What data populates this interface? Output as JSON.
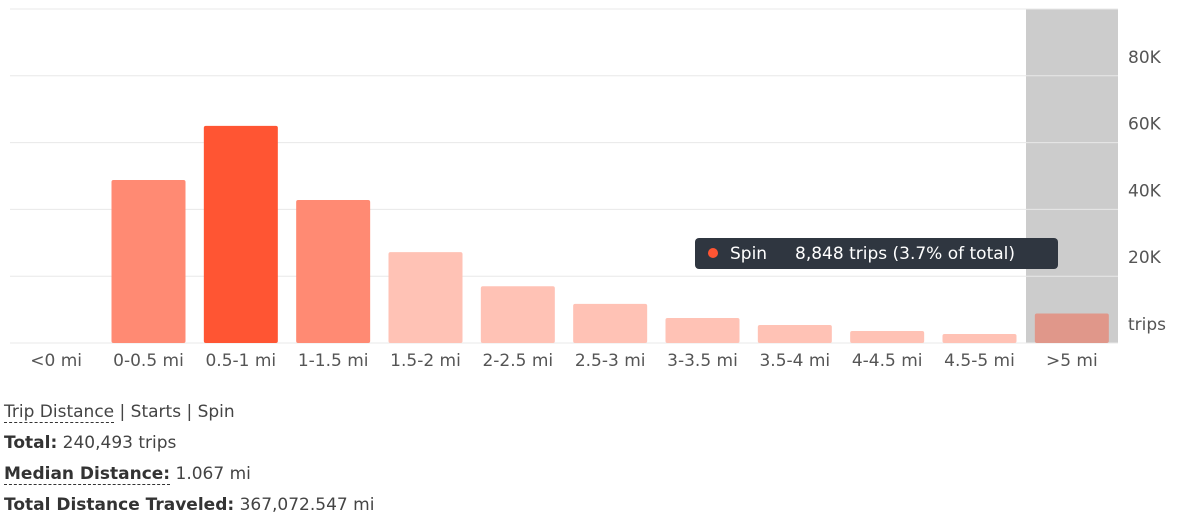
{
  "chart_data": {
    "type": "bar",
    "categories": [
      "<0 mi",
      "0-0.5 mi",
      "0.5-1 mi",
      "1-1.5 mi",
      "1.5-2 mi",
      "2-2.5 mi",
      "2.5-3 mi",
      "3-3.5 mi",
      "3.5-4 mi",
      "4-4.5 mi",
      "4.5-5 mi",
      ">5 mi"
    ],
    "values": [
      0,
      48800,
      65000,
      42800,
      27200,
      17000,
      11700,
      7500,
      5400,
      3600,
      2700,
      8848
    ],
    "colors": [
      "#ffc2b5",
      "#ff8a73",
      "#ff5533",
      "#ff8a73",
      "#ffc2b5",
      "#ffc2b5",
      "#ffc2b5",
      "#ffc2b5",
      "#ffc2b5",
      "#ffc2b5",
      "#ffc2b5",
      "#e0978a"
    ],
    "ylim": [
      0,
      100000
    ],
    "yticks": [
      {
        "value": 0,
        "label": "trips"
      },
      {
        "value": 20000,
        "label": "20K"
      },
      {
        "value": 40000,
        "label": "40K"
      },
      {
        "value": 60000,
        "label": "60K"
      },
      {
        "value": 80000,
        "label": "80K"
      },
      {
        "value": 100000,
        "label": ""
      }
    ],
    "grid": true,
    "tooltip": {
      "series": "Spin",
      "color": "#ff5533",
      "text": "8,848 trips (3.7% of total)"
    }
  },
  "footer": {
    "title": "Trip Distance",
    "filters": "| Starts | Spin",
    "stats": [
      {
        "label": "Total:",
        "value": "240,493 trips"
      },
      {
        "label": "Median Distance:",
        "value": "1.067 mi"
      },
      {
        "label": "Total Distance Traveled:",
        "value": "367,072.547 mi"
      }
    ]
  }
}
